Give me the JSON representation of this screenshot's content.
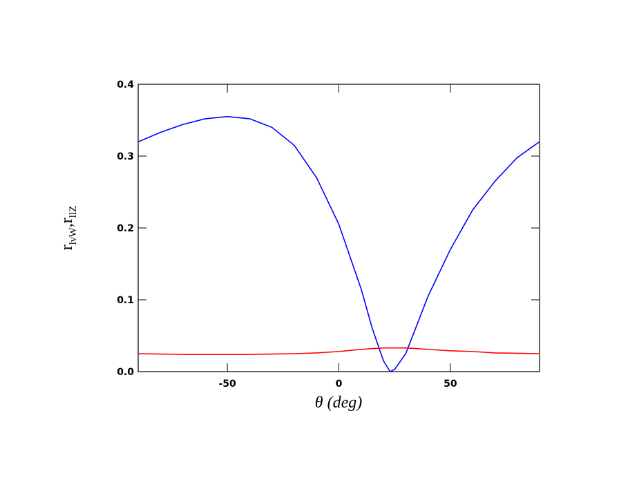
{
  "chart_data": {
    "type": "line",
    "xlabel": "θ (deg)",
    "ylabel": [
      "r",
      "lνW",
      ",r",
      "llZ"
    ],
    "x": [
      -90,
      -80,
      -70,
      -60,
      -50,
      -40,
      -30,
      -20,
      -10,
      0,
      10,
      15,
      20,
      23,
      25,
      30,
      35,
      40,
      50,
      60,
      70,
      80,
      90
    ],
    "series": [
      {
        "color": "#0000ff",
        "values": [
          0.32,
          0.333,
          0.344,
          0.352,
          0.355,
          0.352,
          0.34,
          0.315,
          0.27,
          0.205,
          0.115,
          0.06,
          0.015,
          0.0,
          0.003,
          0.025,
          0.065,
          0.105,
          0.17,
          0.225,
          0.265,
          0.298,
          0.32
        ]
      },
      {
        "color": "#ff0000",
        "values": [
          0.025,
          0.0245,
          0.024,
          0.024,
          0.024,
          0.024,
          0.0245,
          0.025,
          0.026,
          0.028,
          0.031,
          0.032,
          0.033,
          0.033,
          0.033,
          0.033,
          0.032,
          0.031,
          0.029,
          0.028,
          0.026,
          0.0255,
          0.025
        ]
      }
    ],
    "xlim": [
      -90,
      90
    ],
    "ylim": [
      0,
      0.4
    ],
    "xticks": [
      -50,
      0,
      50
    ],
    "yticks": [
      {
        "value": 0,
        "label": "0.0"
      },
      0.1,
      0.2,
      0.3,
      0.4
    ]
  }
}
